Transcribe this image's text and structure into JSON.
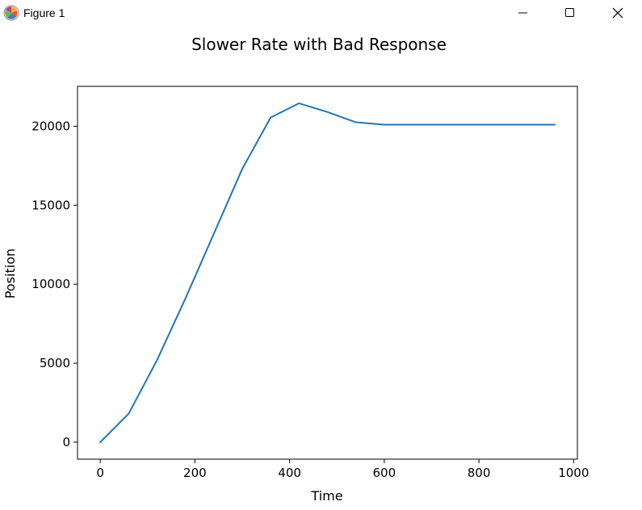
{
  "window": {
    "title": "Figure 1"
  },
  "chart_data": {
    "type": "line",
    "title": "Slower Rate with Bad Response",
    "xlabel": "Time",
    "ylabel": "Position",
    "xlim": [
      -48,
      1008
    ],
    "ylim": [
      -1075,
      22525
    ],
    "xticks": [
      0,
      200,
      400,
      600,
      800,
      1000
    ],
    "yticks": [
      0,
      5000,
      10000,
      15000,
      20000
    ],
    "xtick_labels": [
      "0",
      "200",
      "400",
      "600",
      "800",
      "1000"
    ],
    "ytick_labels": [
      "0",
      "5000",
      "10000",
      "15000",
      "20000"
    ],
    "grid": false,
    "series": [
      {
        "name": "position",
        "color": "#1f77b4",
        "x": [
          0,
          60,
          120,
          180,
          240,
          300,
          360,
          420,
          480,
          540,
          600,
          660,
          720,
          780,
          840,
          900,
          960
        ],
        "y": [
          0,
          1800,
          5200,
          9100,
          13200,
          17300,
          20550,
          21450,
          20900,
          20250,
          20100,
          20100,
          20100,
          20100,
          20100,
          20100,
          20100
        ]
      }
    ]
  }
}
